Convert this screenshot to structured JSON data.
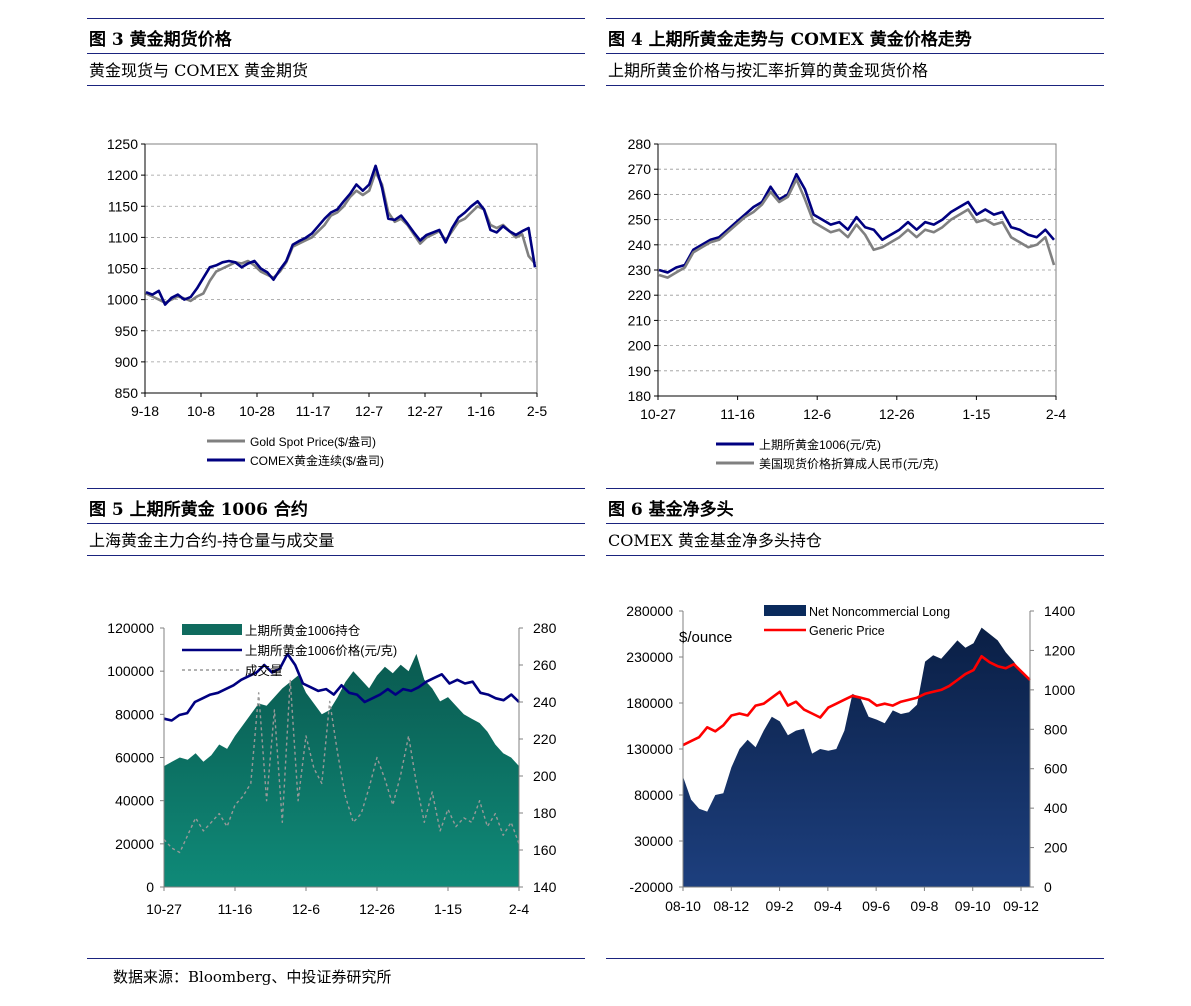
{
  "source": "数据来源：Bloomberg、中投证券研究所",
  "panels": [
    {
      "title": "图 3  黄金期货价格",
      "subtitle": "黄金现货与 COMEX 黄金期货"
    },
    {
      "title": "图 4  上期所黄金走势与 COMEX 黄金价格走势",
      "subtitle": "上期所黄金价格与按汇率折算的黄金现货价格"
    },
    {
      "title": "图 5  上期所黄金 1006 合约",
      "subtitle": "上海黄金主力合约-持仓量与成交量"
    },
    {
      "title": "图 6  基金净多头",
      "subtitle": "COMEX 黄金基金净多头持仓"
    }
  ],
  "chart_data": [
    {
      "type": "line",
      "x_ticks": [
        "9-18",
        "10-8",
        "10-28",
        "11-17",
        "12-7",
        "12-27",
        "1-16",
        "2-5"
      ],
      "ylim": [
        850,
        1250
      ],
      "y_ticks": [
        850,
        900,
        950,
        1000,
        1050,
        1100,
        1150,
        1200,
        1250
      ],
      "grid": true,
      "legend_position": "bottom",
      "series": [
        {
          "name": "Gold Spot Price($/盎司)",
          "color": "#808080",
          "values": [
            1010,
            1005,
            1000,
            995,
            1000,
            1005,
            1002,
            998,
            1005,
            1010,
            1030,
            1045,
            1050,
            1055,
            1060,
            1058,
            1062,
            1055,
            1045,
            1040,
            1035,
            1045,
            1060,
            1085,
            1090,
            1095,
            1100,
            1110,
            1120,
            1135,
            1140,
            1150,
            1165,
            1175,
            1168,
            1175,
            1205,
            1185,
            1140,
            1125,
            1130,
            1120,
            1105,
            1090,
            1100,
            1105,
            1110,
            1095,
            1110,
            1125,
            1130,
            1140,
            1150,
            1145,
            1120,
            1115,
            1120,
            1110,
            1100,
            1105,
            1070,
            1058
          ]
        },
        {
          "name": "COMEX黄金连续($/盎司)",
          "color": "#000080",
          "values": [
            1012,
            1008,
            1014,
            992,
            1003,
            1008,
            1000,
            1004,
            1018,
            1035,
            1052,
            1055,
            1060,
            1062,
            1060,
            1052,
            1058,
            1062,
            1050,
            1044,
            1032,
            1048,
            1062,
            1088,
            1094,
            1099,
            1106,
            1118,
            1130,
            1140,
            1145,
            1158,
            1170,
            1185,
            1175,
            1185,
            1215,
            1180,
            1130,
            1128,
            1135,
            1122,
            1108,
            1095,
            1104,
            1108,
            1112,
            1092,
            1115,
            1132,
            1140,
            1150,
            1158,
            1145,
            1112,
            1108,
            1118,
            1110,
            1104,
            1110,
            1115,
            1052
          ]
        }
      ]
    },
    {
      "type": "line",
      "x_ticks": [
        "10-27",
        "11-16",
        "12-6",
        "12-26",
        "1-15",
        "2-4"
      ],
      "ylim": [
        180,
        280
      ],
      "y_ticks": [
        180,
        190,
        200,
        210,
        220,
        230,
        240,
        250,
        260,
        270,
        280
      ],
      "grid": true,
      "legend_position": "bottom",
      "series": [
        {
          "name": "上期所黄金1006(元/克)",
          "color": "#000080",
          "values": [
            230,
            229,
            231,
            232,
            238,
            240,
            242,
            243,
            246,
            249,
            252,
            255,
            257,
            263,
            258,
            260,
            268,
            262,
            252,
            250,
            248,
            249,
            246,
            251,
            247,
            246,
            242,
            244,
            246,
            249,
            246,
            249,
            248,
            250,
            253,
            255,
            257,
            252,
            254,
            252,
            253,
            247,
            246,
            244,
            243,
            246,
            242
          ]
        },
        {
          "name": "美国现货价格折算成人民币(元/克)",
          "color": "#808080",
          "values": [
            228,
            227,
            229,
            231,
            237,
            239,
            241,
            242,
            245,
            248,
            251,
            253,
            256,
            261,
            257,
            259,
            266,
            258,
            249,
            247,
            245,
            246,
            243,
            248,
            244,
            238,
            239,
            241,
            243,
            246,
            243,
            246,
            245,
            247,
            250,
            252,
            254,
            249,
            250,
            248,
            249,
            243,
            241,
            239,
            240,
            243,
            232
          ]
        }
      ]
    },
    {
      "type": "area",
      "x_ticks": [
        "10-27",
        "11-16",
        "12-6",
        "12-26",
        "1-15",
        "2-4"
      ],
      "y_left": {
        "ylim": [
          0,
          120000
        ],
        "ticks": [
          0,
          20000,
          40000,
          60000,
          80000,
          100000,
          120000
        ]
      },
      "y_right": {
        "ylim": [
          140,
          280
        ],
        "ticks": [
          140,
          160,
          180,
          200,
          220,
          240,
          260,
          280
        ]
      },
      "legend_position": "top",
      "series": [
        {
          "name": "上期所黄金1006持仓",
          "kind": "area",
          "axis": "left",
          "color": "#0f6b5e",
          "values": [
            56000,
            58000,
            60000,
            59000,
            62000,
            58000,
            61000,
            66000,
            64000,
            70000,
            75000,
            80000,
            85000,
            84000,
            88000,
            92000,
            95000,
            98000,
            90000,
            85000,
            80000,
            82000,
            88000,
            95000,
            100000,
            96000,
            92000,
            98000,
            102000,
            99000,
            103000,
            100000,
            108000,
            96000,
            92000,
            86000,
            88000,
            84000,
            80000,
            78000,
            76000,
            72000,
            66000,
            62000,
            60000,
            56000
          ]
        },
        {
          "name": "上期所黄金1006价格(元/克)",
          "kind": "line",
          "axis": "right",
          "color": "#000080",
          "values": [
            231,
            230,
            233,
            234,
            240,
            242,
            244,
            245,
            247,
            249,
            252,
            254,
            256,
            260,
            256,
            258,
            266,
            260,
            250,
            248,
            246,
            247,
            244,
            249,
            245,
            244,
            240,
            242,
            244,
            247,
            244,
            247,
            246,
            248,
            251,
            253,
            255,
            250,
            252,
            250,
            251,
            245,
            244,
            242,
            241,
            244,
            240
          ]
        },
        {
          "name": "成交量",
          "kind": "line",
          "axis": "left",
          "color": "#999999",
          "dash": true,
          "values": [
            22000,
            18000,
            16000,
            24000,
            32000,
            26000,
            30000,
            34000,
            28000,
            38000,
            42000,
            48000,
            90000,
            40000,
            82000,
            30000,
            96000,
            40000,
            70000,
            55000,
            48000,
            86000,
            62000,
            42000,
            30000,
            34000,
            46000,
            60000,
            50000,
            38000,
            52000,
            70000,
            48000,
            30000,
            44000,
            26000,
            36000,
            28000,
            32000,
            30000,
            40000,
            28000,
            34000,
            24000,
            30000,
            20000
          ]
        }
      ]
    },
    {
      "type": "area",
      "x_ticks": [
        "08-10",
        "08-12",
        "09-2",
        "09-4",
        "09-6",
        "09-8",
        "09-10",
        "09-12"
      ],
      "ylabel": "$/ounce",
      "y_left": {
        "ylim": [
          -20000,
          280000
        ],
        "ticks": [
          -20000,
          30000,
          80000,
          130000,
          180000,
          230000,
          280000
        ]
      },
      "y_right": {
        "ylim": [
          0,
          1400
        ],
        "ticks": [
          0,
          200,
          400,
          600,
          800,
          1000,
          1200,
          1400
        ]
      },
      "legend_position": "top",
      "series": [
        {
          "name": "Net Noncommercial Long",
          "kind": "area",
          "axis": "left",
          "color": "#0a2a5c",
          "values": [
            100000,
            75000,
            65000,
            62000,
            80000,
            82000,
            110000,
            130000,
            140000,
            132000,
            150000,
            165000,
            160000,
            145000,
            150000,
            152000,
            125000,
            130000,
            128000,
            130000,
            150000,
            190000,
            185000,
            165000,
            162000,
            158000,
            172000,
            168000,
            170000,
            178000,
            225000,
            232000,
            228000,
            238000,
            248000,
            240000,
            245000,
            262000,
            255000,
            248000,
            235000,
            225000,
            212000,
            205000
          ]
        },
        {
          "name": "Generic Price",
          "kind": "line",
          "axis": "right",
          "color": "#ff0000",
          "values": [
            720,
            740,
            760,
            810,
            790,
            820,
            870,
            880,
            870,
            920,
            930,
            960,
            990,
            920,
            940,
            900,
            880,
            860,
            910,
            930,
            950,
            970,
            960,
            950,
            920,
            930,
            920,
            940,
            950,
            960,
            980,
            990,
            1000,
            1020,
            1050,
            1080,
            1100,
            1170,
            1140,
            1120,
            1110,
            1130,
            1090,
            1050
          ]
        }
      ]
    }
  ]
}
